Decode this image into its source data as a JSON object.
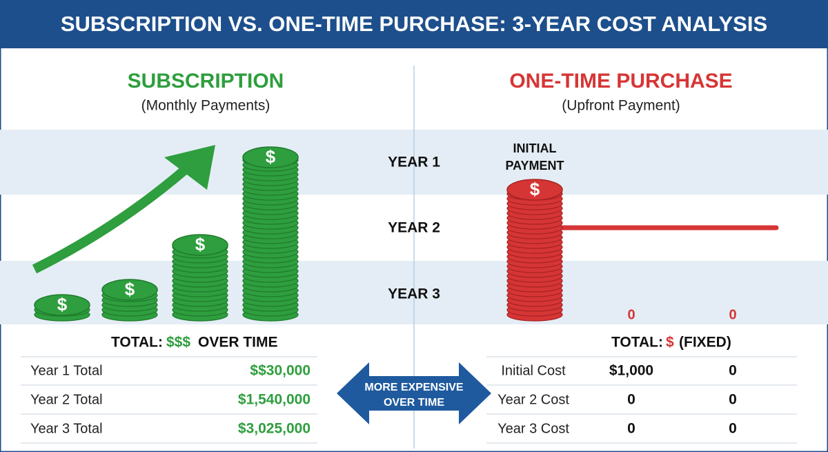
{
  "header": {
    "title": "SUBSCRIPTION VS. ONE-TIME PURCHASE: 3-YEAR COST ANALYSIS"
  },
  "coin_symbol": "$",
  "subscription": {
    "title": "SUBSCRIPTION",
    "subtitle": "(Monthly Payments)",
    "total": [
      "TOTAL:",
      "$$$",
      "OVER TIME"
    ],
    "rows": [
      [
        "Year 1 Total",
        "$$30,000"
      ],
      [
        "Year 2 Total",
        "$1,540,000"
      ],
      [
        "Year 3 Total",
        "$3,025,000"
      ]
    ]
  },
  "years": [
    "YEAR 1",
    "YEAR 2",
    "YEAR 3"
  ],
  "one_time": {
    "title": "ONE-TIME PURCHASE",
    "subtitle": "(Upfront Payment)",
    "stack_label": [
      "INITIAL",
      "PAYMENT"
    ],
    "zeros": [
      "0",
      "0"
    ],
    "total": [
      "TOTAL:",
      "$",
      "(FIXED)"
    ],
    "rows": [
      [
        "Initial Cost",
        "$1,000",
        "0"
      ],
      [
        "Year 2 Cost",
        "0",
        "0"
      ],
      [
        "Year 3 Cost",
        "0",
        "0"
      ]
    ]
  },
  "arrow": [
    "MORE EXPENSIVE",
    "OVER TIME"
  ]
}
